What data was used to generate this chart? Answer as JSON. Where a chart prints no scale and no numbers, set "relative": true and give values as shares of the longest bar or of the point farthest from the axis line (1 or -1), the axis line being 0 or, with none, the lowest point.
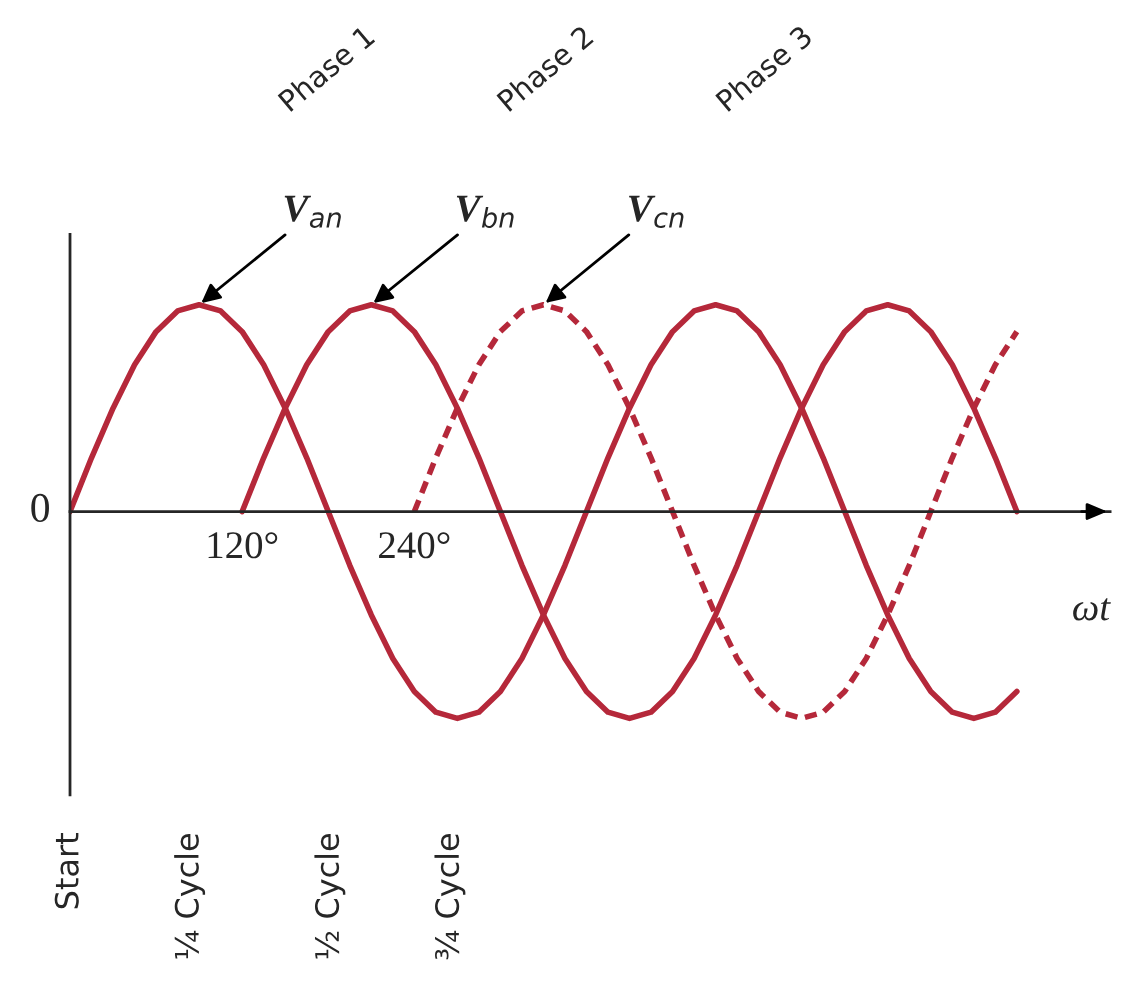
{
  "chart_data": {
    "type": "line",
    "relative": true,
    "xlabel": "ωt",
    "xlim": [
      0,
      725
    ],
    "xticks": [
      {
        "value": 120,
        "label": "120°"
      },
      {
        "value": 240,
        "label": "240°"
      }
    ],
    "legend": false,
    "grid": false,
    "tick_labels": "x",
    "series": [
      {
        "name": "V$_{an}$",
        "color": "#b5283a",
        "line_style": "solid",
        "x": [
          0,
          15,
          30,
          45,
          60,
          75,
          90,
          105,
          120,
          135,
          150,
          165,
          180,
          195,
          210,
          225,
          240,
          255,
          270,
          285,
          300,
          315,
          330,
          345,
          360,
          375,
          390,
          405,
          420,
          435,
          450,
          465,
          480,
          495,
          510,
          525,
          540,
          555,
          570,
          585,
          600,
          615,
          630,
          645,
          660
        ],
        "values": [
          0,
          0.26,
          0.5,
          0.71,
          0.87,
          0.97,
          1,
          0.97,
          0.87,
          0.71,
          0.5,
          0.26,
          0,
          -0.26,
          -0.5,
          -0.71,
          -0.87,
          -0.97,
          -1,
          -0.97,
          -0.87,
          -0.71,
          -0.5,
          -0.26,
          0,
          0.26,
          0.5,
          0.71,
          0.87,
          0.97,
          1,
          0.97,
          0.87,
          0.71,
          0.5,
          0.26,
          0,
          -0.26,
          -0.5,
          -0.71,
          -0.87,
          -0.97,
          -1,
          -0.97,
          -0.87
        ]
      },
      {
        "name": "V$_{bn}$",
        "color": "#b5283a",
        "line_style": "solid",
        "x": [
          120,
          135,
          150,
          165,
          180,
          195,
          210,
          225,
          240,
          255,
          270,
          285,
          300,
          315,
          330,
          345,
          360,
          375,
          390,
          405,
          420,
          435,
          450,
          465,
          480,
          495,
          510,
          525,
          540,
          555,
          570,
          585,
          600,
          615,
          630,
          645,
          660
        ],
        "values": [
          0,
          0.26,
          0.5,
          0.71,
          0.87,
          0.97,
          1,
          0.97,
          0.87,
          0.71,
          0.5,
          0.26,
          0,
          -0.26,
          -0.5,
          -0.71,
          -0.87,
          -0.97,
          -1,
          -0.97,
          -0.87,
          -0.71,
          -0.5,
          -0.26,
          0,
          0.26,
          0.5,
          0.71,
          0.87,
          0.97,
          1,
          0.97,
          0.87,
          0.71,
          0.5,
          0.26,
          0
        ]
      },
      {
        "name": "V$_{cn}$",
        "color": "#b5283a",
        "line_style": "dashed",
        "x": [
          240,
          255,
          270,
          285,
          300,
          315,
          330,
          345,
          360,
          375,
          390,
          405,
          420,
          435,
          450,
          465,
          480,
          495,
          510,
          525,
          540,
          555,
          570,
          585,
          600,
          615,
          630,
          645,
          660
        ],
        "values": [
          0,
          0.26,
          0.5,
          0.71,
          0.87,
          0.97,
          1,
          0.97,
          0.87,
          0.71,
          0.5,
          0.26,
          0,
          -0.26,
          -0.5,
          -0.71,
          -0.87,
          -0.97,
          -1,
          -0.97,
          -0.87,
          -0.71,
          -0.5,
          -0.26,
          0,
          0.26,
          0.5,
          0.71,
          0.87
        ]
      }
    ],
    "annotations": [
      {
        "text": "0",
        "x": 0,
        "y": 0
      },
      "Start",
      "¼ Cycle",
      "½ Cycle",
      "¾ Cycle",
      "Phase 1",
      "Phase 2",
      "Phase 3"
    ]
  }
}
